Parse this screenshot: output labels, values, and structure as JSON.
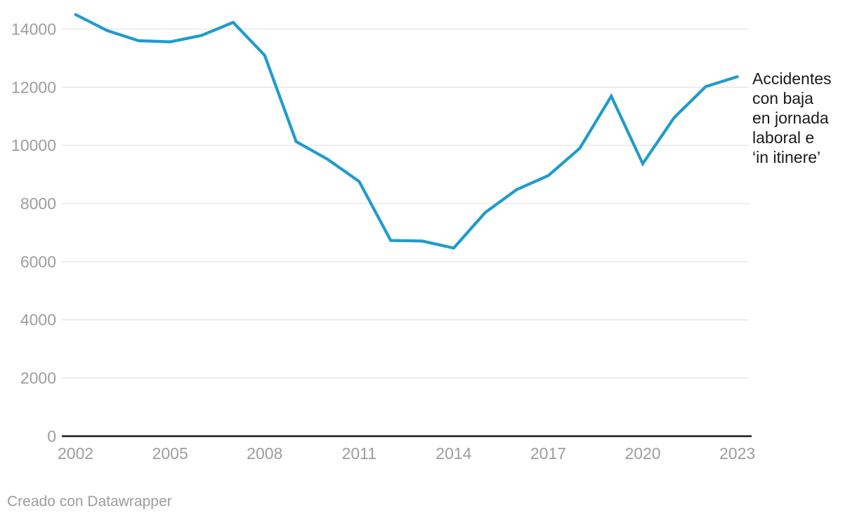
{
  "chart_data": {
    "type": "line",
    "series_label": "Accidentes con baja en jornada laboral e ‘in itinere’",
    "annotation_text": "Accidentes\ncon baja\nen jornada\nlaboral e\n‘in itinere’",
    "x": [
      2002,
      2003,
      2004,
      2005,
      2006,
      2007,
      2008,
      2009,
      2010,
      2011,
      2012,
      2013,
      2014,
      2015,
      2016,
      2017,
      2018,
      2019,
      2020,
      2021,
      2022,
      2023
    ],
    "values": [
      14500,
      13950,
      13600,
      13560,
      13780,
      14230,
      13100,
      10130,
      9520,
      8760,
      6730,
      6710,
      6470,
      7690,
      8480,
      8960,
      9900,
      11690,
      9370,
      10960,
      12020,
      12360
    ],
    "x_ticks": [
      2002,
      2005,
      2008,
      2011,
      2014,
      2017,
      2020,
      2023
    ],
    "y_ticks": [
      0,
      2000,
      4000,
      6000,
      8000,
      10000,
      12000,
      14000
    ],
    "ylim": [
      0,
      14500
    ],
    "xlim": [
      2002,
      2023
    ],
    "grid": true,
    "legend_position": "right-annotation",
    "title": "",
    "xlabel": "",
    "ylabel": "",
    "line_color": "#1f9bcd",
    "gridline_color": "#e7e7e7",
    "axis_color": "#111111",
    "tick_label_color": "#9d9d9d",
    "annotation_color": "#1a1a1a"
  },
  "footer": {
    "credit": "Creado con Datawrapper"
  }
}
